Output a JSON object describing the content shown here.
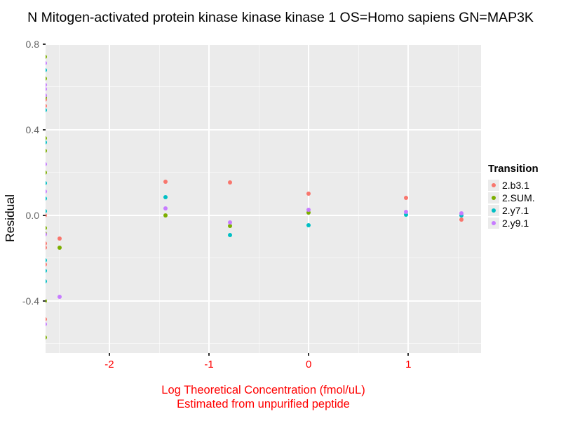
{
  "chart_data": {
    "type": "scatter",
    "title": "N Mitogen-activated protein kinase kinase kinase 1 OS=Homo sapiens GN=MAP3K",
    "xlabel_line1": "Log Theoretical Concentration (fmol/uL)",
    "xlabel_line2": "Estimated from unpurified peptide",
    "ylabel": "Residual",
    "legend_title": "Transition",
    "xlim": [
      -2.64,
      1.73
    ],
    "ylim": [
      -0.643,
      0.803
    ],
    "x_ticks": [
      {
        "value": -2,
        "label": "-2"
      },
      {
        "value": -1,
        "label": "-1"
      },
      {
        "value": 0,
        "label": "0"
      },
      {
        "value": 1,
        "label": "1"
      }
    ],
    "y_ticks": [
      {
        "value": 0.8,
        "label": "0.8"
      },
      {
        "value": 0.4,
        "label": "0.4"
      },
      {
        "value": 0.0,
        "label": "0.0"
      },
      {
        "value": -0.4,
        "label": "-0.4"
      }
    ],
    "x_minor_ticks": [
      -2.5,
      -1.5,
      -0.5,
      0.5,
      1.5
    ],
    "y_minor_ticks": [
      0.6,
      0.2,
      -0.2,
      -0.6
    ],
    "grid": true,
    "legend_position": "right",
    "panel_background": "#ebebeb",
    "axis_label_color": "#ff0000",
    "series": [
      {
        "name": "2.b3.1",
        "color": "#F8766D",
        "points": [
          [
            -2.65,
            0.54
          ],
          [
            -2.65,
            0.51
          ],
          [
            -2.65,
            0.0
          ],
          [
            -2.65,
            -0.13
          ],
          [
            -2.65,
            -0.15
          ],
          [
            -2.65,
            -0.23
          ],
          [
            -2.65,
            -0.485
          ],
          [
            -2.5,
            -0.11
          ],
          [
            -1.44,
            0.157
          ],
          [
            -0.79,
            0.154
          ],
          [
            0.0,
            0.102
          ],
          [
            0.98,
            0.082
          ],
          [
            1.53,
            -0.02
          ]
        ]
      },
      {
        "name": "2.SUM.",
        "color": "#7CAE00",
        "points": [
          [
            -2.65,
            0.74
          ],
          [
            -2.65,
            0.64
          ],
          [
            -2.65,
            0.55
          ],
          [
            -2.65,
            0.36
          ],
          [
            -2.65,
            0.3
          ],
          [
            -2.65,
            0.2
          ],
          [
            -2.65,
            -0.06
          ],
          [
            -2.65,
            -0.085
          ],
          [
            -2.65,
            -0.4
          ],
          [
            -2.65,
            -0.57
          ],
          [
            -2.5,
            -0.15
          ],
          [
            -1.44,
            0.0
          ],
          [
            -0.79,
            -0.048
          ],
          [
            0.0,
            0.014
          ]
        ]
      },
      {
        "name": "2.y7.1",
        "color": "#00BFC4",
        "points": [
          [
            -2.65,
            0.68
          ],
          [
            -2.65,
            0.49
          ],
          [
            -2.65,
            0.34
          ],
          [
            -2.65,
            0.15
          ],
          [
            -2.65,
            0.08
          ],
          [
            -2.65,
            0.02
          ],
          [
            -2.65,
            -0.21
          ],
          [
            -2.65,
            -0.26
          ],
          [
            -2.65,
            -0.31
          ],
          [
            -1.44,
            0.085
          ],
          [
            -0.79,
            -0.092
          ],
          [
            0.0,
            -0.047
          ],
          [
            0.98,
            0.002
          ],
          [
            1.53,
            0.0
          ]
        ]
      },
      {
        "name": "2.y9.1",
        "color": "#C77CFF",
        "points": [
          [
            -2.65,
            0.71
          ],
          [
            -2.65,
            0.61
          ],
          [
            -2.65,
            0.59
          ],
          [
            -2.65,
            0.56
          ],
          [
            -2.65,
            0.24
          ],
          [
            -2.65,
            0.11
          ],
          [
            -2.65,
            -0.09
          ],
          [
            -2.65,
            -0.51
          ],
          [
            -2.5,
            -0.38
          ],
          [
            -1.44,
            0.032
          ],
          [
            -0.79,
            -0.034
          ],
          [
            0.0,
            0.025
          ],
          [
            0.98,
            0.015
          ],
          [
            1.53,
            0.01
          ]
        ]
      }
    ]
  }
}
